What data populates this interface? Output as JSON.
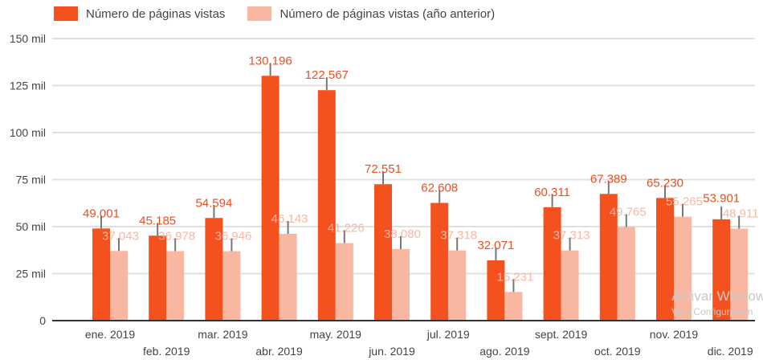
{
  "chart_data": {
    "type": "bar",
    "categories": [
      "ene. 2019",
      "feb. 2019",
      "mar. 2019",
      "abr. 2019",
      "may. 2019",
      "jun. 2019",
      "jul. 2019",
      "ago. 2019",
      "sept. 2019",
      "oct. 2019",
      "nov. 2019",
      "dic. 2019"
    ],
    "series": [
      {
        "name": "Número de páginas vistas",
        "color": "#f4511e",
        "values": [
          49001,
          45185,
          54594,
          130196,
          122567,
          72551,
          62608,
          32071,
          60311,
          67389,
          65230,
          53901
        ],
        "labels": [
          "49.001",
          "45.185",
          "54.594",
          "130.196",
          "122.567",
          "72.551",
          "62.608",
          "32.071",
          "60.311",
          "67.389",
          "65.230",
          "53.901"
        ]
      },
      {
        "name": "Número de páginas vistas (año anterior)",
        "color": "#f9b7a2",
        "values": [
          37043,
          36978,
          36946,
          46143,
          41226,
          38080,
          37318,
          15231,
          37313,
          49765,
          55265,
          48911
        ],
        "labels": [
          "37.043",
          "36.978",
          "36.946",
          "46.143",
          "41.226",
          "38.080",
          "37.318",
          "15.231",
          "37.313",
          "49.765",
          "55.265",
          "48.911"
        ]
      }
    ],
    "yticks": [
      0,
      25000,
      50000,
      75000,
      100000,
      125000,
      150000
    ],
    "ytick_labels": [
      "0",
      "25 mil",
      "50 mil",
      "75 mil",
      "100 mil",
      "125 mil",
      "150 mil"
    ],
    "ylim": [
      0,
      150000
    ],
    "grid": true,
    "legend": "top-left",
    "xlabel": "",
    "ylabel": ""
  },
  "watermark": {
    "line1": "Activar Windows",
    "line2": "Ve a Configuración"
  }
}
